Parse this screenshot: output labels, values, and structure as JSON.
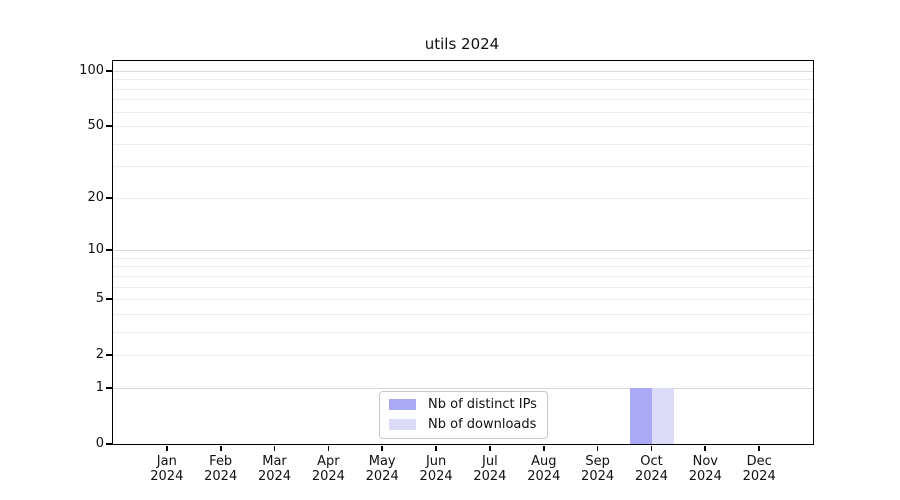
{
  "chart_data": {
    "type": "bar",
    "title": "utils 2024",
    "categories": [
      "Jan 2024",
      "Feb 2024",
      "Mar 2024",
      "Apr 2024",
      "May 2024",
      "Jun 2024",
      "Jul 2024",
      "Aug 2024",
      "Sep 2024",
      "Oct 2024",
      "Nov 2024",
      "Dec 2024"
    ],
    "x_tick_months": [
      "Jan",
      "Feb",
      "Mar",
      "Apr",
      "May",
      "Jun",
      "Jul",
      "Aug",
      "Sep",
      "Oct",
      "Nov",
      "Dec"
    ],
    "x_tick_year": "2024",
    "series": [
      {
        "name": "Nb of distinct IPs",
        "color": "#a9a9f6",
        "values": [
          0,
          0,
          0,
          0,
          0,
          0,
          0,
          0,
          0,
          1,
          0,
          0
        ]
      },
      {
        "name": "Nb of downloads",
        "color": "#dbdbf8",
        "values": [
          0,
          0,
          0,
          0,
          0,
          0,
          0,
          0,
          0,
          1,
          0,
          0
        ]
      }
    ],
    "xlabel": "",
    "ylabel": "",
    "y_scale": "log1p",
    "ylim": [
      0,
      113
    ],
    "y_ticks": [
      0,
      1,
      2,
      5,
      10,
      20,
      50,
      100
    ],
    "y_major_gridlines": [
      1,
      10,
      100
    ],
    "y_minor_gridlines": [
      2,
      3,
      4,
      5,
      6,
      7,
      8,
      9,
      20,
      30,
      40,
      50,
      60,
      70,
      80,
      90
    ],
    "grid": "horizontal",
    "legend_position": "lower-center"
  },
  "colors": {
    "background": "#ffffff",
    "axis": "#000000",
    "grid_minor": "#ececec",
    "grid_major": "#d8d8d8",
    "legend_border": "#c8c8c8",
    "text": "#111111"
  }
}
